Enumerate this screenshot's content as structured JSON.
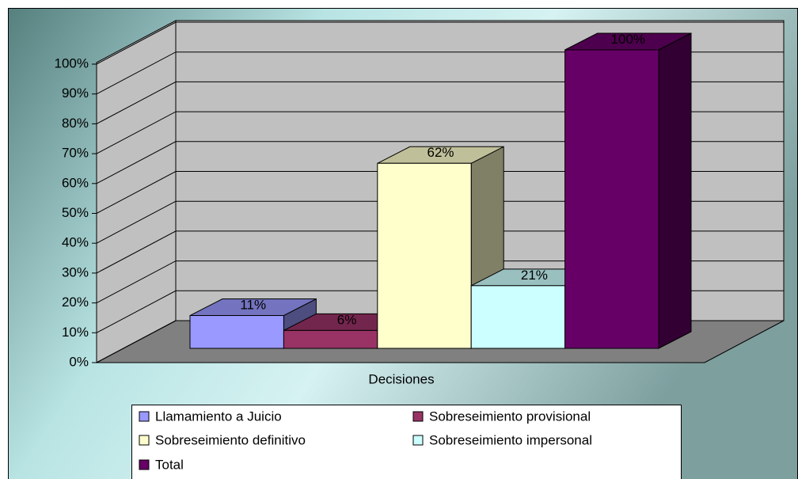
{
  "chart_data": {
    "type": "bar",
    "categories": [
      "Decisiones"
    ],
    "series": [
      {
        "name": "Llamamiento a Juicio",
        "color": "#9999ff",
        "values": [
          11
        ],
        "value_labels": [
          "11%"
        ]
      },
      {
        "name": "Sobreseimiento provisional",
        "color": "#993366",
        "values": [
          6
        ],
        "value_labels": [
          "6%"
        ]
      },
      {
        "name": "Sobreseimiento definitivo",
        "color": "#ffffcc",
        "values": [
          62
        ],
        "value_labels": [
          "62%"
        ]
      },
      {
        "name": "Sobreseimiento impersonal",
        "color": "#ccffff",
        "values": [
          21
        ],
        "value_labels": [
          "21%"
        ]
      },
      {
        "name": "Total",
        "color": "#660066",
        "values": [
          100
        ],
        "value_labels": [
          "100%"
        ]
      }
    ],
    "ylim": [
      0,
      100
    ],
    "yticks": [
      {
        "value": 0,
        "label": "0%"
      },
      {
        "value": 10,
        "label": "10%"
      },
      {
        "value": 20,
        "label": "20%"
      },
      {
        "value": 30,
        "label": "30%"
      },
      {
        "value": 40,
        "label": "40%"
      },
      {
        "value": 50,
        "label": "50%"
      },
      {
        "value": 60,
        "label": "60%"
      },
      {
        "value": 70,
        "label": "70%"
      },
      {
        "value": 80,
        "label": "80%"
      },
      {
        "value": 90,
        "label": "90%"
      },
      {
        "value": 100,
        "label": "100%"
      }
    ],
    "grid": true,
    "legend": "bottom"
  }
}
